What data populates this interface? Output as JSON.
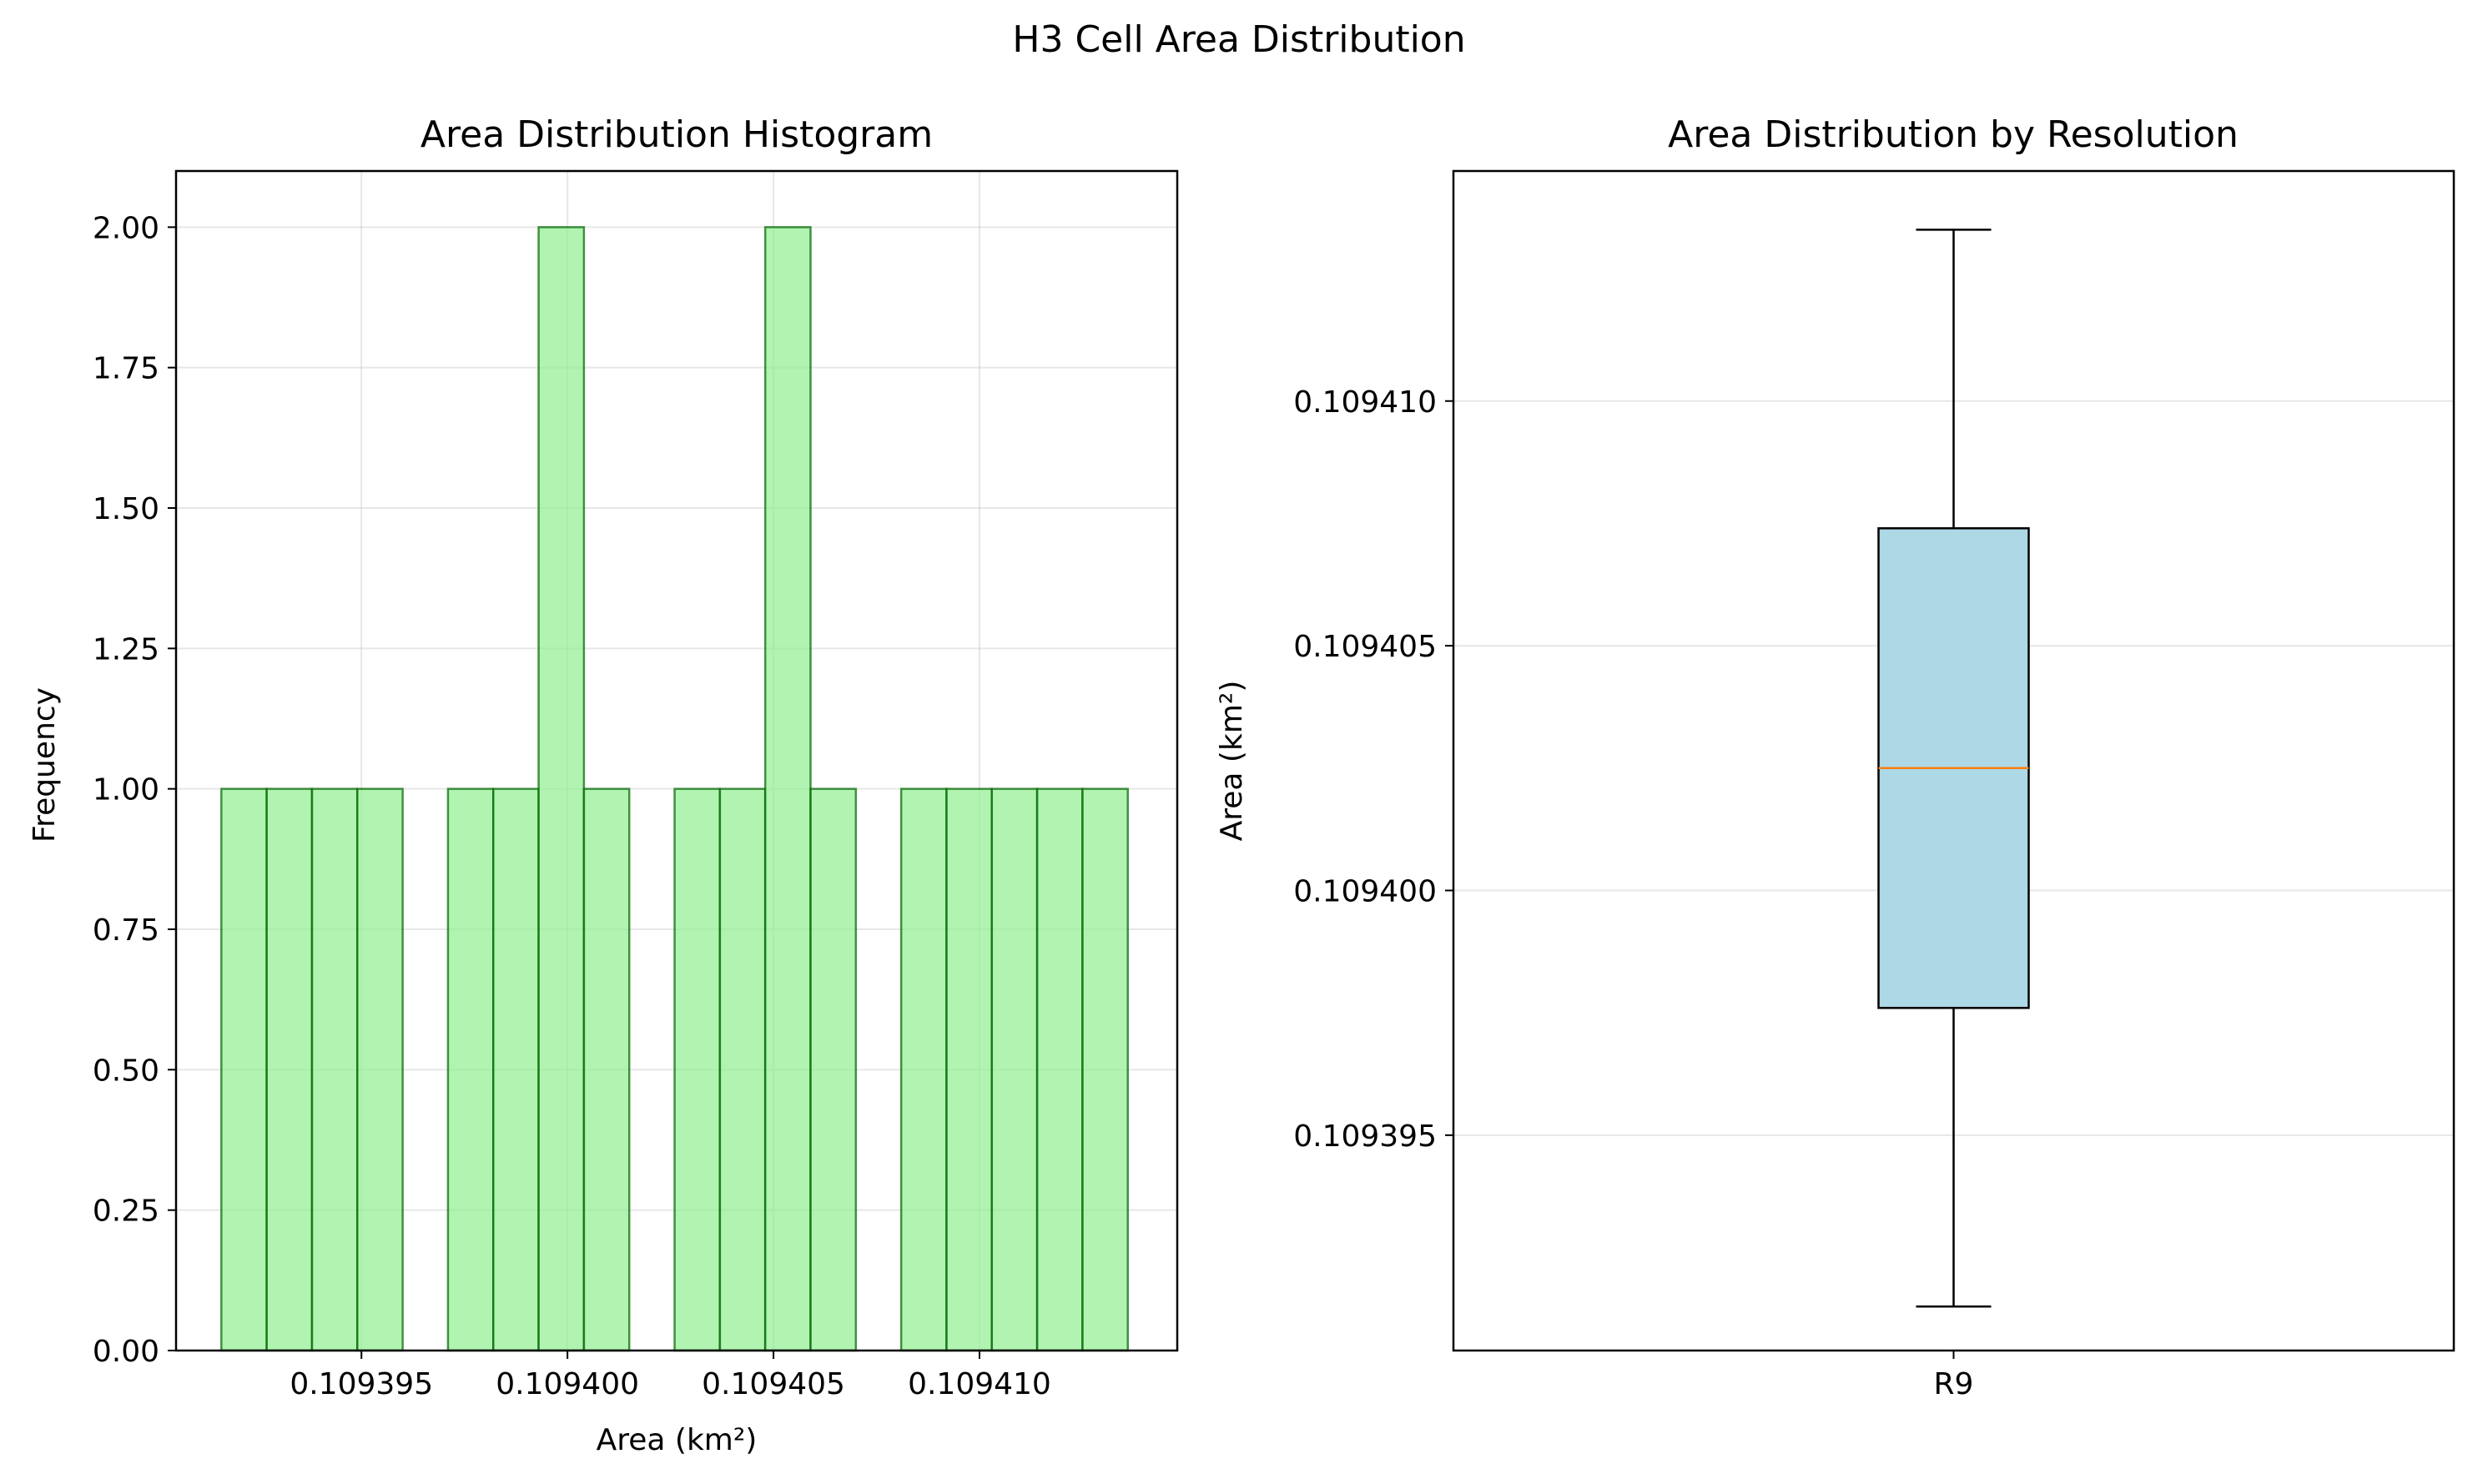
{
  "figure": {
    "title": "H3 Cell Area Distribution"
  },
  "chart_data": [
    {
      "type": "histogram",
      "title": "Area Distribution Histogram",
      "xlabel": "Area (km²)",
      "ylabel": "Frequency",
      "xlim": [
        0.1093905,
        0.1094148
      ],
      "ylim": [
        0,
        2.1
      ],
      "xticks": [
        0.109395,
        0.1094,
        0.109405,
        0.10941
      ],
      "xtick_labels": [
        "0.109395",
        "0.109400",
        "0.109405",
        "0.109410"
      ],
      "yticks": [
        0,
        0.25,
        0.5,
        0.75,
        1.0,
        1.25,
        1.5,
        1.75,
        2.0
      ],
      "ytick_labels": [
        "0.00",
        "0.25",
        "0.50",
        "0.75",
        "1.00",
        "1.25",
        "1.50",
        "1.75",
        "2.00"
      ],
      "bin_range": [
        0.1093916,
        0.1094136
      ],
      "counts": [
        1,
        1,
        1,
        1,
        0,
        1,
        1,
        2,
        1,
        0,
        1,
        1,
        2,
        1,
        0,
        1,
        1,
        1,
        1,
        1
      ],
      "grid": true,
      "colors": {
        "bar_fill": "#90ee90",
        "bar_edge": "#006400"
      }
    },
    {
      "type": "box",
      "title": "Area Distribution by Resolution",
      "xlabel": "",
      "ylabel": "Area (km²)",
      "categories": [
        "R9"
      ],
      "ylim": [
        0.1093906,
        0.1094147
      ],
      "yticks": [
        0.109395,
        0.1094,
        0.109405,
        0.10941
      ],
      "ytick_labels": [
        "0.109395",
        "0.109400",
        "0.109405",
        "0.109410"
      ],
      "boxes": [
        {
          "label": "R9",
          "whisker_low": 0.1093915,
          "q1": 0.1093976,
          "median": 0.1094025,
          "q3": 0.1094074,
          "whisker_high": 0.1094135
        }
      ],
      "grid": true,
      "colors": {
        "box_fill": "#add8e6",
        "median": "#ff7f0e",
        "edge": "#000000"
      }
    }
  ]
}
